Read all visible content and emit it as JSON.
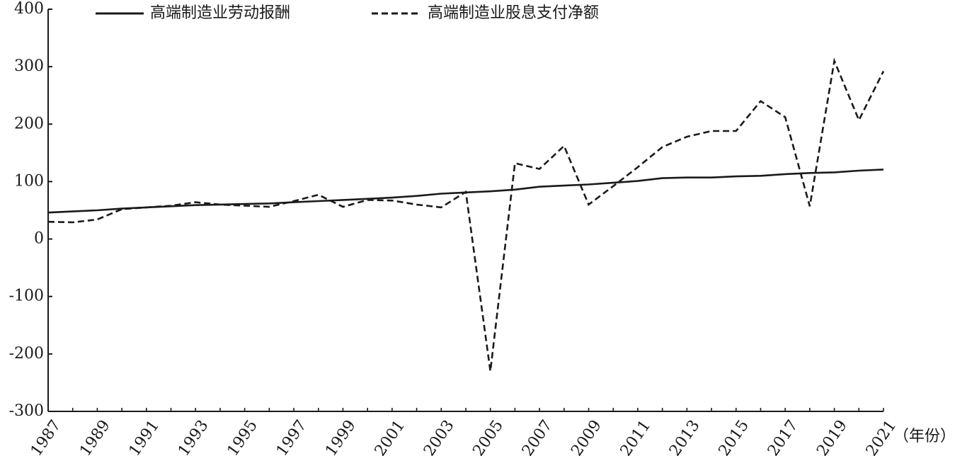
{
  "chart_data": {
    "type": "line",
    "x_unit_label": "（年份）",
    "ylim": [
      -300,
      400
    ],
    "y_ticks": [
      400,
      300,
      200,
      100,
      0,
      -100,
      -200,
      -300
    ],
    "x_tick_labels": [
      "1987",
      "1989",
      "1991",
      "1993",
      "1995",
      "1997",
      "1999",
      "2001",
      "2003",
      "2005",
      "2007",
      "2009",
      "2011",
      "2013",
      "2015",
      "2017",
      "2019",
      "2021"
    ],
    "x": [
      1987,
      1988,
      1989,
      1990,
      1991,
      1992,
      1993,
      1994,
      1995,
      1996,
      1997,
      1998,
      1999,
      2000,
      2001,
      2002,
      2003,
      2004,
      2005,
      2006,
      2007,
      2008,
      2009,
      2010,
      2011,
      2012,
      2013,
      2014,
      2015,
      2016,
      2017,
      2018,
      2019,
      2020,
      2021
    ],
    "legend_position": "top",
    "grid": false,
    "series": [
      {
        "name": "高端制造业劳动报酬",
        "style": "solid",
        "color": "#1a1a1a",
        "values": [
          46,
          48,
          50,
          53,
          55,
          57,
          59,
          60,
          61,
          62,
          64,
          66,
          68,
          70,
          72,
          75,
          79,
          81,
          83,
          86,
          91,
          93,
          95,
          98,
          101,
          106,
          107,
          107,
          109,
          110,
          113,
          115,
          116,
          119,
          121
        ]
      },
      {
        "name": "高端制造业股息支付净额",
        "style": "dashed",
        "color": "#1a1a1a",
        "values": [
          30,
          29,
          34,
          52,
          55,
          58,
          64,
          60,
          58,
          56,
          66,
          77,
          56,
          68,
          67,
          60,
          55,
          82,
          -230,
          132,
          122,
          162,
          60,
          92,
          125,
          160,
          178,
          188,
          188,
          240,
          212,
          57,
          310,
          207,
          292
        ]
      }
    ]
  }
}
